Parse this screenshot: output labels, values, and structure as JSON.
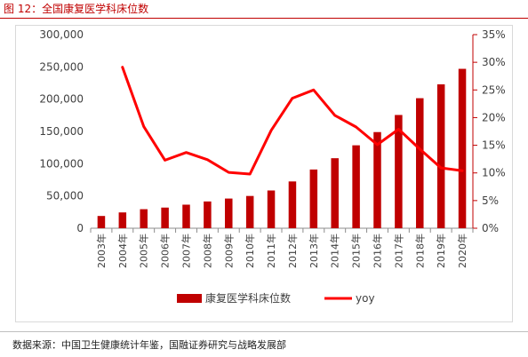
{
  "header": {
    "title": "图 12：全国康复医学科床位数"
  },
  "footer": {
    "source": "数据来源：中国卫生健康统计年鉴，国融证券研究与战略发展部"
  },
  "colors": {
    "title": "#c00000",
    "bar": "#c00000",
    "line": "#ff0000"
  },
  "chart_data": {
    "type": "bar",
    "title": "",
    "categories": [
      "2003年",
      "2004年",
      "2005年",
      "2006年",
      "2007年",
      "2008年",
      "2009年",
      "2010年",
      "2011年",
      "2012年",
      "2013年",
      "2014年",
      "2015年",
      "2016年",
      "2017年",
      "2018年",
      "2019年",
      "2020年"
    ],
    "series": [
      {
        "name": "康复医学科床位数",
        "type": "bar",
        "axis": "left",
        "values": [
          19000,
          24500,
          29500,
          32000,
          36500,
          41500,
          46000,
          50000,
          58500,
          72500,
          91000,
          108500,
          128500,
          149000,
          175500,
          201500,
          223000,
          247000
        ]
      },
      {
        "name": "yoy",
        "type": "line",
        "axis": "right",
        "values": [
          null,
          0.291,
          0.184,
          0.123,
          0.137,
          0.124,
          0.101,
          0.098,
          0.177,
          0.235,
          0.25,
          0.204,
          0.183,
          0.151,
          0.179,
          0.143,
          0.109,
          0.104
        ]
      }
    ],
    "y_left": {
      "ticks": [
        "0",
        "50,000",
        "100,000",
        "150,000",
        "200,000",
        "250,000",
        "300,000"
      ],
      "range": [
        0,
        300000
      ]
    },
    "y_right": {
      "ticks": [
        "0%",
        "5%",
        "10%",
        "15%",
        "20%",
        "25%",
        "30%",
        "35%"
      ],
      "range": [
        0,
        0.35
      ]
    },
    "legend": {
      "position": "bottom"
    },
    "grid": false
  }
}
